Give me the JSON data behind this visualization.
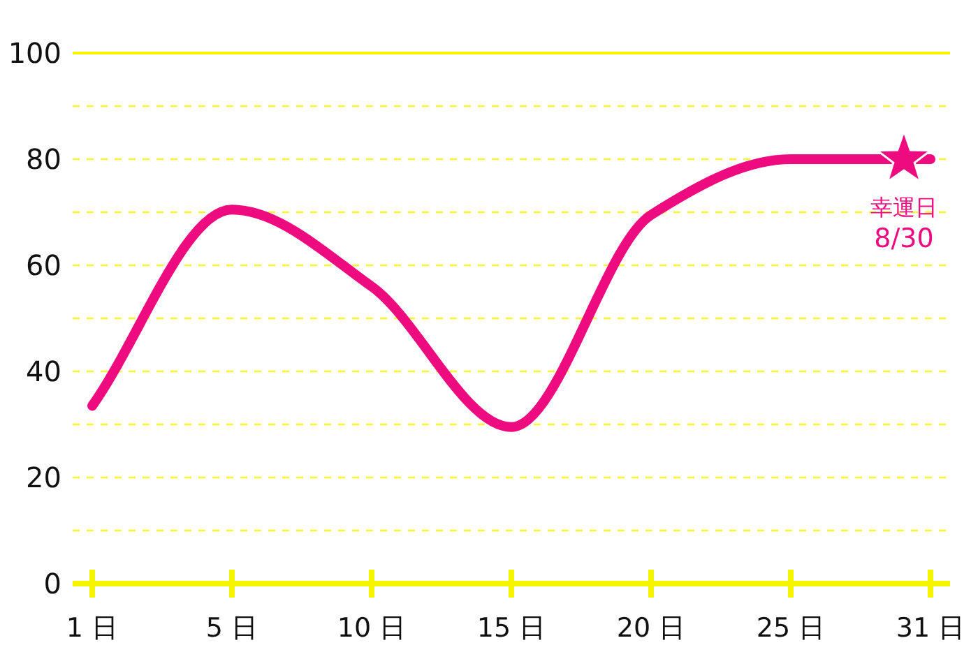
{
  "chart_data": {
    "type": "line",
    "categories": [
      "1 日",
      "5 日",
      "10 日",
      "15 日",
      "20 日",
      "25 日",
      "31 日"
    ],
    "series": [
      {
        "color": "#ee0a7f",
        "values": [
          33.5,
          70.5,
          56,
          29.5,
          69.5,
          80,
          80
        ]
      }
    ],
    "ylim": [
      0,
      100
    ],
    "yticks": [
      0,
      {
        "value": 10,
        "label": null
      },
      20,
      {
        "value": 30,
        "label": null
      },
      40,
      {
        "value": 50,
        "label": null
      },
      60,
      {
        "value": 70,
        "label": null
      },
      80,
      {
        "value": 90,
        "label": null
      },
      100
    ],
    "grid": "y",
    "annotations": [
      {
        "text": "幸運日\n8/30",
        "x": "31 日",
        "y": 80
      }
    ]
  }
}
